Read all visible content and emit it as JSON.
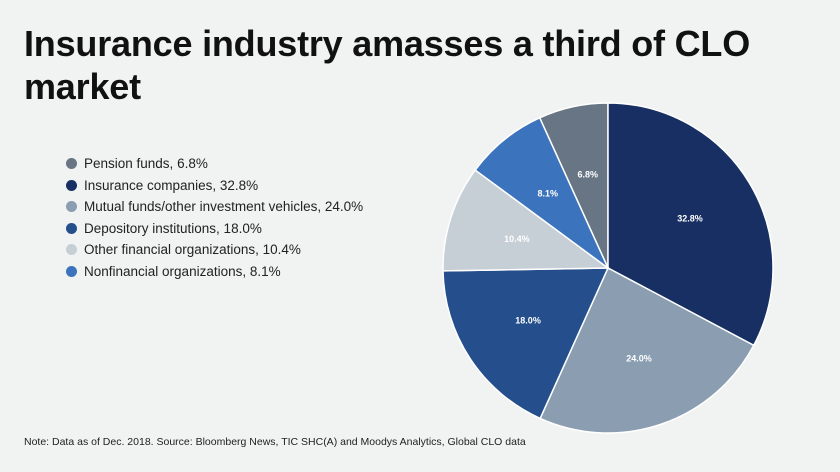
{
  "title": "Insurance industry amasses a third of CLO market",
  "note": "Note: Data as of Dec. 2018. Source: Bloomberg News, TIC SHC(A) and Moodys Analytics, Global CLO data",
  "chart_data": {
    "type": "pie",
    "title": "Insurance industry amasses a third of CLO market",
    "legend_position": "left",
    "slices": [
      {
        "legend": "Pension funds, 6.8%",
        "value": 6.8,
        "label": "6.8%",
        "color": "#677584",
        "label_color": "#ffffff"
      },
      {
        "legend": "Insurance companies, 32.8%",
        "value": 32.8,
        "label": "32.8%",
        "color": "#172f63",
        "label_color": "#ffffff"
      },
      {
        "legend": "Mutual funds/other investment vehicles, 24.0%",
        "value": 24.0,
        "label": "24.0%",
        "color": "#8a9db1",
        "label_color": "#ffffff"
      },
      {
        "legend": "Depository institutions, 18.0%",
        "value": 18.0,
        "label": "18.0%",
        "color": "#244f8c",
        "label_color": "#ffffff"
      },
      {
        "legend": "Other financial organizations, 10.4%",
        "value": 10.4,
        "label": "10.4%",
        "color": "#c6ced6",
        "label_color": "#ffffff"
      },
      {
        "legend": "Nonfinancial organizations, 8.1%",
        "value": 8.1,
        "label": "8.1%",
        "color": "#3b74bd",
        "label_color": "#ffffff"
      }
    ]
  }
}
